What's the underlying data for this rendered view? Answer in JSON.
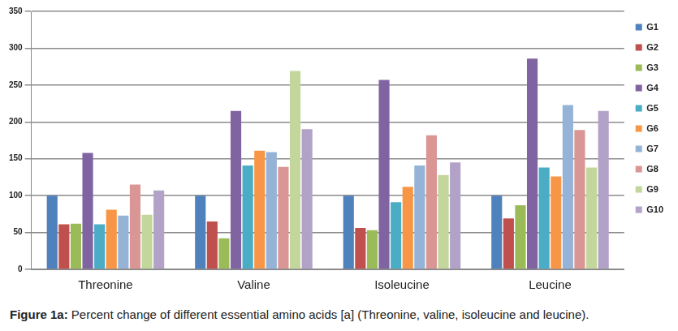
{
  "chart_data": {
    "type": "bar",
    "title": "Figure 1a: Percent change of different essential amino acids [a] (Threonine, valine, isoleucine and leucine).",
    "categories": [
      "Threonine",
      "Valine",
      "Isoleucine",
      "Leucine"
    ],
    "series": [
      {
        "name": "G1",
        "color": "#4f81bd",
        "values": [
          100,
          100,
          100,
          100
        ]
      },
      {
        "name": "G2",
        "color": "#c0504d",
        "values": [
          61,
          65,
          56,
          69
        ]
      },
      {
        "name": "G3",
        "color": "#9bbb59",
        "values": [
          62,
          42,
          53,
          87
        ]
      },
      {
        "name": "G4",
        "color": "#8064a2",
        "values": [
          158,
          215,
          257,
          286
        ]
      },
      {
        "name": "G5",
        "color": "#4bacc6",
        "values": [
          61,
          141,
          91,
          138
        ]
      },
      {
        "name": "G6",
        "color": "#f79646",
        "values": [
          81,
          161,
          112,
          126
        ]
      },
      {
        "name": "G7",
        "color": "#95b3d7",
        "values": [
          73,
          159,
          141,
          223
        ]
      },
      {
        "name": "G8",
        "color": "#d99694",
        "values": [
          115,
          139,
          182,
          189
        ]
      },
      {
        "name": "G9",
        "color": "#c3d69b",
        "values": [
          74,
          269,
          128,
          138
        ]
      },
      {
        "name": "G10",
        "color": "#b3a2c7",
        "values": [
          107,
          190,
          145,
          215
        ]
      }
    ],
    "ylim": [
      0,
      350
    ],
    "yticks": [
      0,
      50,
      100,
      150,
      200,
      250,
      300,
      350
    ],
    "grid": true,
    "legend": "right"
  }
}
